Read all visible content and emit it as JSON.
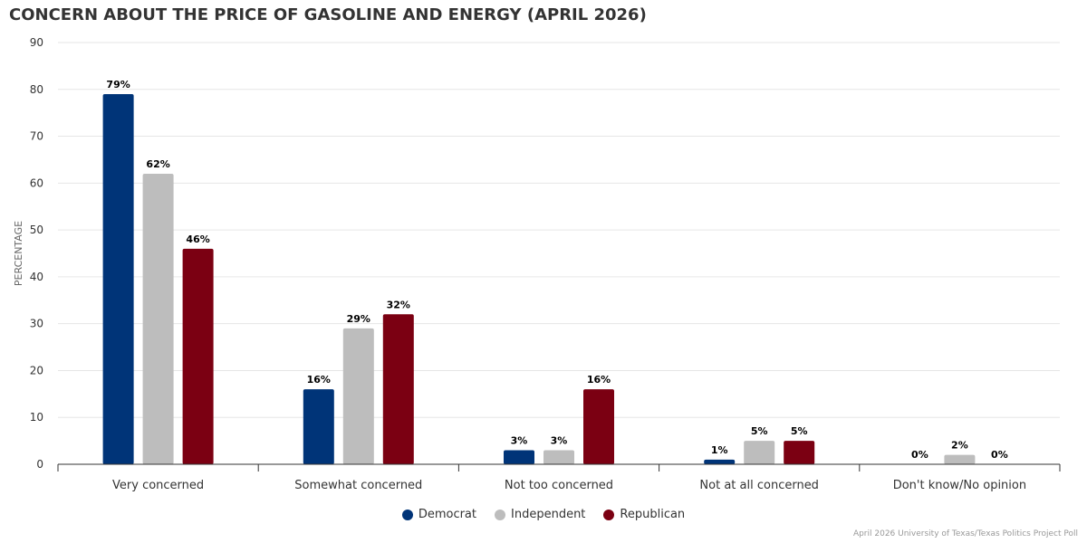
{
  "chart_data": {
    "type": "bar",
    "title": "CONCERN ABOUT THE PRICE OF GASOLINE AND ENERGY (APRIL 2026)",
    "xlabel": "",
    "ylabel": "PERCENTAGE",
    "ylim": [
      0,
      90
    ],
    "yticks": [
      0,
      10,
      20,
      30,
      40,
      50,
      60,
      70,
      80,
      90
    ],
    "grid": true,
    "legend_position": "bottom-center",
    "categories": [
      "Very concerned",
      "Somewhat concerned",
      "Not too concerned",
      "Not at all concerned",
      "Don't know/No opinion"
    ],
    "series": [
      {
        "name": "Democrat",
        "color": "#003478",
        "values": [
          79,
          16,
          3,
          1,
          0
        ],
        "labels": [
          "79%",
          "16%",
          "3%",
          "1%",
          "0%"
        ]
      },
      {
        "name": "Independent",
        "color": "#bdbdbd",
        "values": [
          62,
          29,
          3,
          5,
          2
        ],
        "labels": [
          "62%",
          "29%",
          "3%",
          "5%",
          "2%"
        ]
      },
      {
        "name": "Republican",
        "color": "#7b0012",
        "values": [
          46,
          32,
          16,
          5,
          0
        ],
        "labels": [
          "46%",
          "32%",
          "16%",
          "5%",
          "0%"
        ]
      }
    ]
  },
  "credit": "April 2026 University of Texas/Texas Politics Project Poll"
}
